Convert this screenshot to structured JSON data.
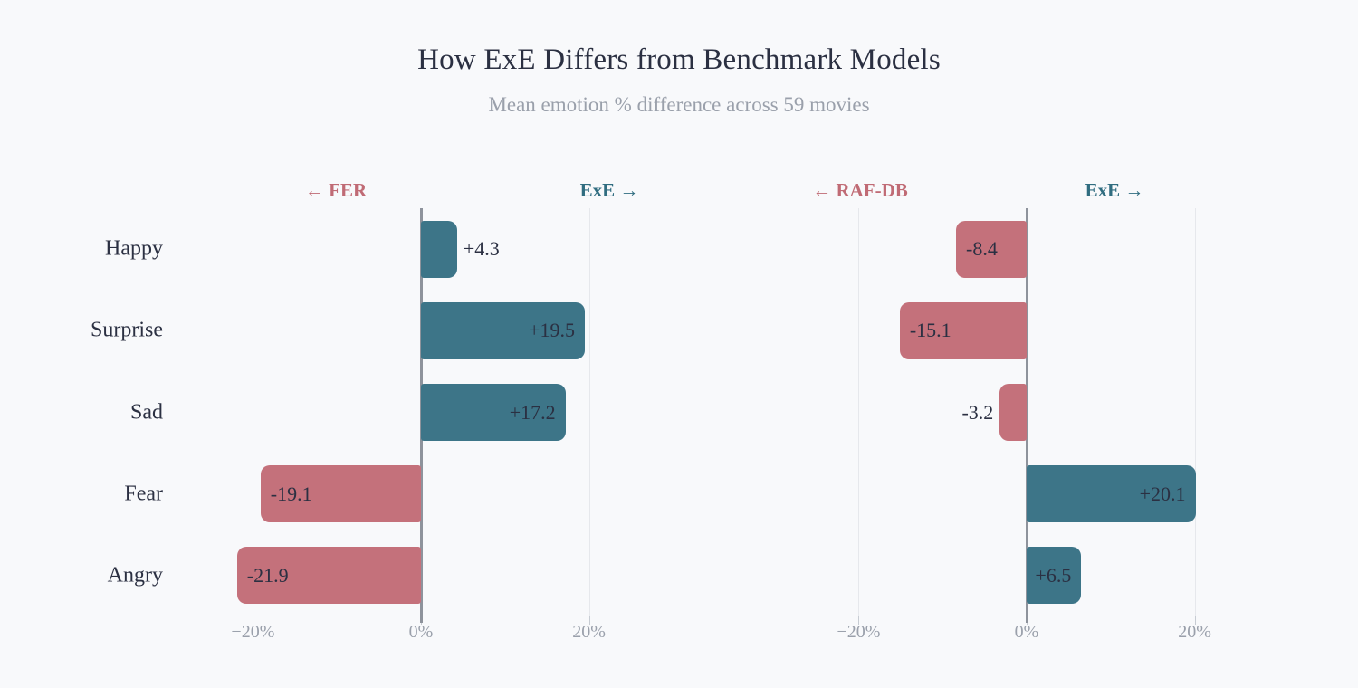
{
  "title": "How ExE Differs from Benchmark Models",
  "subtitle": "Mean emotion % difference across 59 movies",
  "colors": {
    "background": "#f8f9fb",
    "positive_bar": "#3d7588",
    "negative_bar": "#c4717b",
    "positive_header": "#306d80",
    "negative_header": "#c06b75",
    "ink": "#2b3042",
    "muted": "#9aa0ab",
    "gridline": "#e6e8ec",
    "zero_line": "#8e939c",
    "tick": "#c7ccd3"
  },
  "chart_data": [
    {
      "type": "bar",
      "orientation": "horizontal-diverging",
      "panel_name": "FER-vs-ExE",
      "header_negative": "← FER",
      "header_positive": "ExE →",
      "categories": [
        "Happy",
        "Surprise",
        "Sad",
        "Fear",
        "Angry"
      ],
      "values": [
        4.3,
        19.5,
        17.2,
        -19.1,
        -21.9
      ],
      "bar_labels": [
        "+4.3",
        "+19.5",
        "+17.2",
        "-19.1",
        "-21.9"
      ],
      "xlim": [
        -25,
        25
      ],
      "xticks": [
        -20,
        0,
        20
      ],
      "xtick_labels": [
        "−20%",
        "0%",
        "20%"
      ],
      "grid": true,
      "legend": "none"
    },
    {
      "type": "bar",
      "orientation": "horizontal-diverging",
      "panel_name": "RAF-DB-vs-ExE",
      "header_negative": "← RAF-DB",
      "header_positive": "ExE →",
      "categories": [
        "Happy",
        "Surprise",
        "Sad",
        "Fear",
        "Angry"
      ],
      "values": [
        -8.4,
        -15.1,
        -3.2,
        20.1,
        6.5
      ],
      "bar_labels": [
        "-8.4",
        "-15.1",
        "-3.2",
        "+20.1",
        "+6.5"
      ],
      "xlim": [
        -25,
        25
      ],
      "xticks": [
        -20,
        0,
        20
      ],
      "xtick_labels": [
        "−20%",
        "0%",
        "20%"
      ],
      "grid": true,
      "legend": "none"
    }
  ]
}
